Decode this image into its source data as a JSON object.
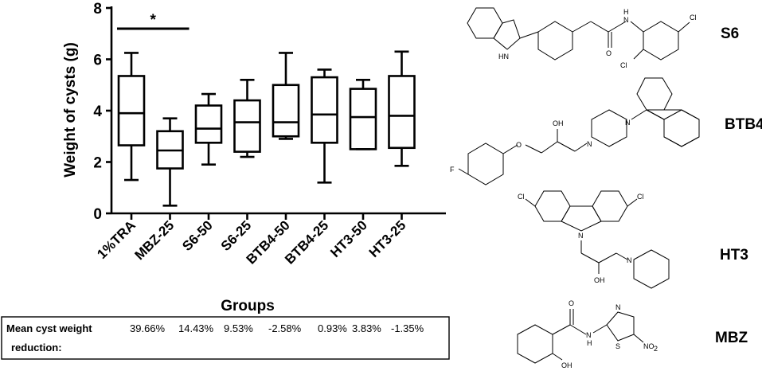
{
  "chart_data": {
    "type": "box",
    "ylabel": "Weight of cysts (g)",
    "xlabel": "Groups",
    "ylim": [
      0,
      8
    ],
    "yticks": [
      "0",
      "2",
      "4",
      "6",
      "8"
    ],
    "categories": [
      "1%TRA",
      "MBZ-25",
      "S6-50",
      "S6-25",
      "BTB4-50",
      "BTB4-25",
      "HT3-50",
      "HT3-25"
    ],
    "boxes": [
      {
        "min": 1.3,
        "q1": 2.65,
        "median": 3.9,
        "q3": 5.35,
        "max": 6.25
      },
      {
        "min": 0.3,
        "q1": 1.75,
        "median": 2.45,
        "q3": 3.2,
        "max": 3.7
      },
      {
        "min": 1.9,
        "q1": 2.75,
        "median": 3.3,
        "q3": 4.2,
        "max": 4.65
      },
      {
        "min": 2.2,
        "q1": 2.4,
        "median": 3.55,
        "q3": 4.4,
        "max": 5.2
      },
      {
        "min": 2.9,
        "q1": 3.0,
        "median": 3.55,
        "q3": 5.0,
        "max": 6.25
      },
      {
        "min": 1.2,
        "q1": 2.75,
        "median": 3.85,
        "q3": 5.3,
        "max": 5.6
      },
      {
        "min": 2.5,
        "q1": 2.5,
        "median": 3.75,
        "q3": 4.85,
        "max": 5.2
      },
      {
        "min": 1.85,
        "q1": 2.55,
        "median": 3.8,
        "q3": 5.35,
        "max": 6.3
      }
    ],
    "significance": {
      "marker": "*",
      "from": "1%TRA",
      "to": "MBZ-25"
    },
    "grid": false
  },
  "reduction_table": {
    "label_line1": "Mean cyst weight",
    "label_line2": "reduction:",
    "values": [
      "39.66%",
      "14.43%",
      "9.53%",
      "-2.58%",
      "0.93%",
      "3.83%",
      "-1.35%"
    ]
  },
  "compounds": [
    {
      "name": "S6",
      "atoms": [
        "H",
        "N",
        "O",
        "Cl",
        "Cl",
        "HN"
      ]
    },
    {
      "name": "BTB4",
      "atoms": [
        "OH",
        "O",
        "N",
        "N",
        "F"
      ]
    },
    {
      "name": "HT3",
      "atoms": [
        "Cl",
        "Cl",
        "N",
        "OH",
        "N"
      ]
    },
    {
      "name": "MBZ",
      "atoms": [
        "O",
        "H",
        "N",
        "N",
        "S",
        "NO",
        "2",
        "OH"
      ]
    }
  ]
}
